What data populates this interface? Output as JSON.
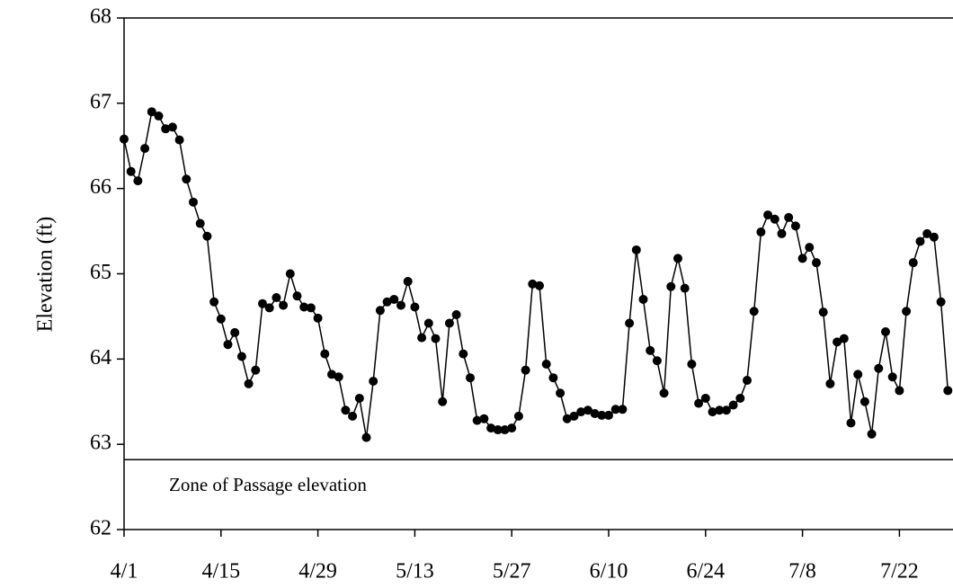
{
  "chart_data": {
    "type": "line",
    "y_label": "Elevation (ft)",
    "annotation": {
      "text": "Zone of Passage elevation",
      "value": 62.82
    },
    "categories": [
      "4/1",
      null,
      null,
      null,
      null,
      null,
      null,
      null,
      null,
      null,
      null,
      null,
      null,
      null,
      "4/15",
      null,
      null,
      null,
      null,
      null,
      null,
      null,
      null,
      null,
      null,
      null,
      null,
      null,
      "4/29",
      null,
      null,
      null,
      null,
      null,
      null,
      null,
      null,
      null,
      null,
      null,
      null,
      null,
      "5/13",
      null,
      null,
      null,
      null,
      null,
      null,
      null,
      null,
      null,
      null,
      null,
      null,
      null,
      "5/27",
      null,
      null,
      null,
      null,
      null,
      null,
      null,
      null,
      null,
      null,
      null,
      null,
      null,
      "6/10",
      null,
      null,
      null,
      null,
      null,
      null,
      null,
      null,
      null,
      null,
      null,
      null,
      null,
      "6/24",
      null,
      null,
      null,
      null,
      null,
      null,
      null,
      null,
      null,
      null,
      null,
      null,
      null,
      "7/8",
      null,
      null,
      null,
      null,
      null,
      null,
      null,
      null,
      null,
      null,
      null,
      null,
      null,
      "7/22",
      null,
      null,
      null,
      null,
      null,
      null,
      null
    ],
    "values": [
      66.58,
      66.2,
      66.09,
      66.47,
      66.9,
      66.85,
      66.7,
      66.72,
      66.57,
      66.11,
      65.84,
      65.59,
      65.44,
      64.67,
      64.47,
      64.17,
      64.31,
      64.03,
      63.71,
      63.87,
      64.65,
      64.6,
      64.72,
      64.63,
      65.0,
      64.74,
      64.61,
      64.6,
      64.48,
      64.06,
      63.82,
      63.79,
      63.4,
      63.33,
      63.54,
      63.08,
      63.74,
      64.57,
      64.67,
      64.7,
      64.63,
      64.91,
      64.61,
      64.25,
      64.42,
      64.24,
      63.5,
      64.42,
      64.52,
      64.06,
      63.78,
      63.28,
      63.3,
      63.19,
      63.17,
      63.17,
      63.19,
      63.33,
      63.87,
      64.88,
      64.86,
      63.94,
      63.78,
      63.6,
      63.3,
      63.33,
      63.38,
      63.4,
      63.36,
      63.34,
      63.34,
      63.41,
      63.41,
      64.42,
      65.28,
      64.7,
      64.1,
      63.98,
      63.6,
      64.85,
      65.18,
      64.83,
      63.94,
      63.48,
      63.54,
      63.38,
      63.4,
      63.4,
      63.46,
      63.54,
      63.75,
      64.56,
      65.49,
      65.69,
      65.64,
      65.47,
      65.66,
      65.56,
      65.18,
      65.31,
      65.13,
      64.55,
      63.71,
      64.2,
      64.24,
      63.25,
      63.82,
      63.5,
      63.12,
      63.89,
      64.32,
      63.79,
      63.63,
      64.56,
      65.13,
      65.38,
      65.47,
      65.43,
      64.67,
      63.63
    ],
    "color": "#000000",
    "ylim": [
      62,
      68
    ],
    "yticks": [
      62,
      63,
      64,
      65,
      66,
      67,
      68
    ]
  }
}
